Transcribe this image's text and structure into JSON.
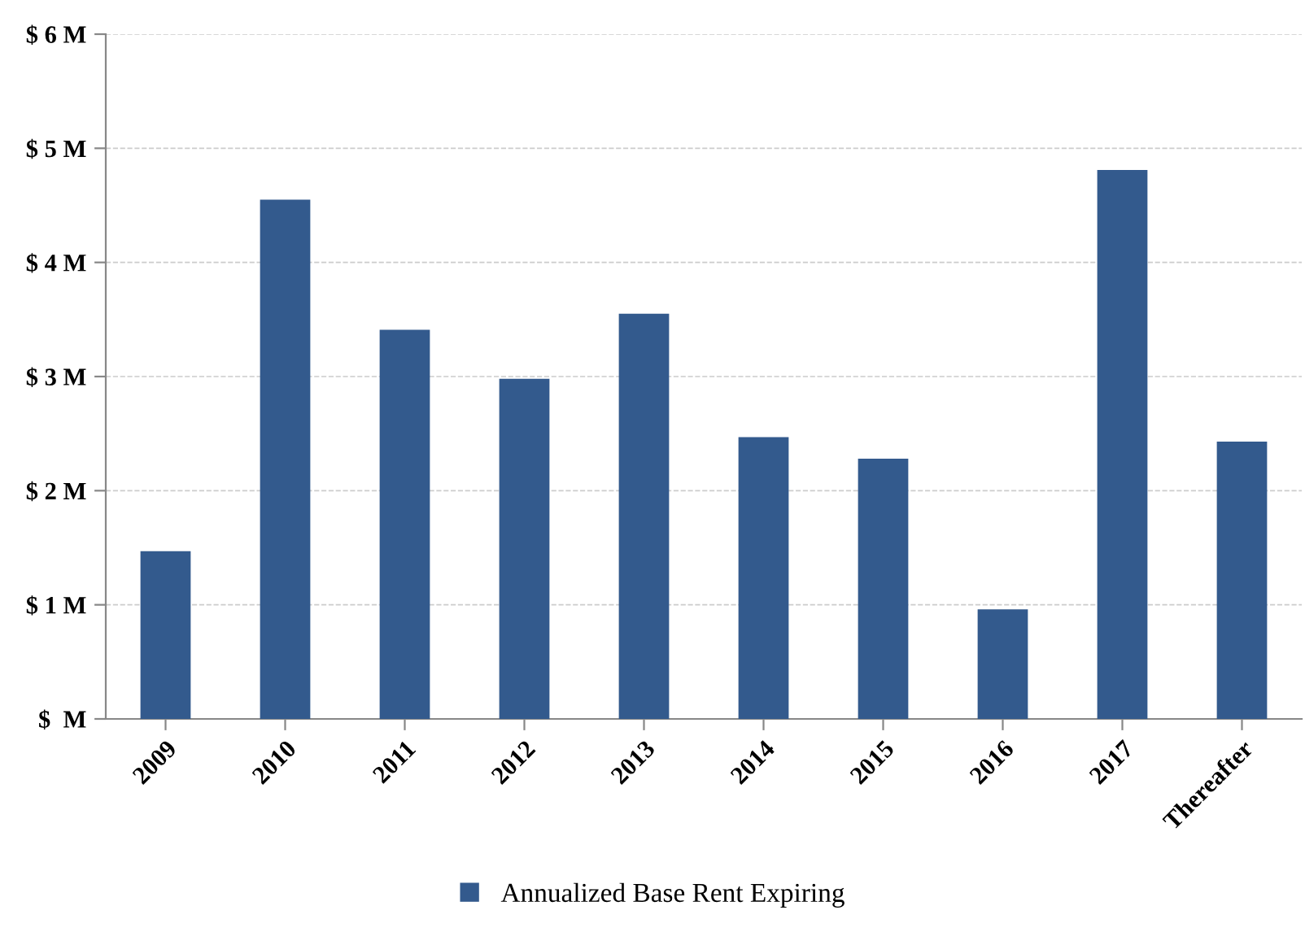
{
  "chart_data": {
    "type": "bar",
    "categories": [
      "2009",
      "2010",
      "2011",
      "2012",
      "2013",
      "2014",
      "2015",
      "2016",
      "2017",
      "Thereafter"
    ],
    "series": [
      {
        "name": "Annualized Base Rent Expiring",
        "color": "#335a8d",
        "values": [
          1.47,
          4.55,
          3.41,
          2.98,
          3.55,
          2.47,
          2.28,
          0.96,
          4.81,
          2.43
        ]
      }
    ],
    "ylim": [
      0,
      6
    ],
    "yticks": [
      {
        "value": 0,
        "label": "$  M"
      },
      {
        "value": 1,
        "label": "$ 1 M"
      },
      {
        "value": 2,
        "label": "$ 2 M"
      },
      {
        "value": 3,
        "label": "$ 3 M"
      },
      {
        "value": 4,
        "label": "$ 4 M"
      },
      {
        "value": 5,
        "label": "$ 5 M"
      },
      {
        "value": 6,
        "label": "$ 6 M"
      }
    ],
    "grid": "y",
    "legend": "bottom"
  }
}
